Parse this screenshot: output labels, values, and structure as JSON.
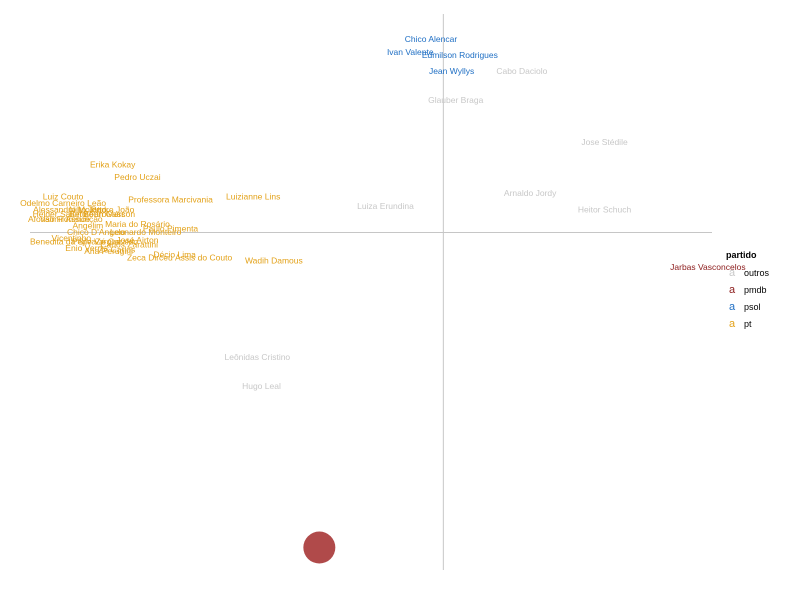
{
  "chart_data": {
    "type": "scatter",
    "title": "",
    "xlabel": "",
    "ylabel": "",
    "xlim": [
      -1.0,
      0.65
    ],
    "ylim": [
      -1.05,
      0.68
    ],
    "grid": false,
    "legend": {
      "title": "partido",
      "placement": "right",
      "entries": [
        {
          "key": "a",
          "name": "outros",
          "color": "#c8c8c8"
        },
        {
          "key": "a",
          "name": "pmdb",
          "color": "#8b1a1a"
        },
        {
          "key": "a",
          "name": "psol",
          "color": "#1f6fc4"
        },
        {
          "key": "a",
          "name": "pt",
          "color": "#e3a21a"
        }
      ]
    },
    "point": {
      "x": -0.3,
      "y": -0.98,
      "color": "#b04a4a"
    },
    "labels": [
      {
        "text": "Chico Alencar",
        "party": "psol",
        "x": -0.03,
        "y": 0.6
      },
      {
        "text": "Ivan Valente",
        "party": "psol",
        "x": -0.08,
        "y": 0.56
      },
      {
        "text": "Edmilson Rodrigues",
        "party": "psol",
        "x": 0.04,
        "y": 0.55
      },
      {
        "text": "Jean Wyllys",
        "party": "psol",
        "x": 0.02,
        "y": 0.5
      },
      {
        "text": "Cabo Daciolo",
        "party": "outros",
        "x": 0.19,
        "y": 0.5
      },
      {
        "text": "Glauber Braga",
        "party": "outros",
        "x": 0.03,
        "y": 0.41
      },
      {
        "text": "Jose Stédile",
        "party": "outros",
        "x": 0.39,
        "y": 0.28
      },
      {
        "text": "Erika Kokay",
        "party": "pt",
        "x": -0.8,
        "y": 0.21
      },
      {
        "text": "Pedro Uczai",
        "party": "pt",
        "x": -0.74,
        "y": 0.17
      },
      {
        "text": "Arnaldo Jordy",
        "party": "outros",
        "x": 0.21,
        "y": 0.12
      },
      {
        "text": "Luizianne Lins",
        "party": "pt",
        "x": -0.46,
        "y": 0.11
      },
      {
        "text": "Luiz Couto",
        "party": "pt",
        "x": -0.92,
        "y": 0.11
      },
      {
        "text": "Professora Marcivania",
        "party": "pt",
        "x": -0.66,
        "y": 0.1
      },
      {
        "text": "Odelmo Carneiro Leão",
        "party": "pt",
        "x": -0.92,
        "y": 0.09
      },
      {
        "text": "Heitor Schuch",
        "party": "outros",
        "x": 0.39,
        "y": 0.07
      },
      {
        "text": "Luiza Erundina",
        "party": "outros",
        "x": -0.14,
        "y": 0.08
      },
      {
        "text": "Alessandro Molon",
        "party": "pt",
        "x": -0.91,
        "y": 0.07
      },
      {
        "text": "Nilto Tatto",
        "party": "pt",
        "x": -0.86,
        "y": 0.07
      },
      {
        "text": "Padre João",
        "party": "pt",
        "x": -0.8,
        "y": 0.07
      },
      {
        "text": "Helder Salomão",
        "party": "pt",
        "x": -0.92,
        "y": 0.055
      },
      {
        "text": "Beto Faro",
        "party": "pt",
        "x": -0.86,
        "y": 0.055
      },
      {
        "text": "Bohn Gass",
        "party": "pt",
        "x": -0.82,
        "y": 0.055
      },
      {
        "text": "Marcon",
        "party": "pt",
        "x": -0.78,
        "y": 0.055
      },
      {
        "text": "Afonso Florence",
        "party": "pt",
        "x": -0.93,
        "y": 0.04
      },
      {
        "text": "Valmir Assunção",
        "party": "pt",
        "x": -0.9,
        "y": 0.04
      },
      {
        "text": "Angelim",
        "party": "pt",
        "x": -0.86,
        "y": 0.02
      },
      {
        "text": "Maria do Rosário",
        "party": "pt",
        "x": -0.74,
        "y": 0.025
      },
      {
        "text": "Paulo Pimenta",
        "party": "pt",
        "x": -0.66,
        "y": 0.01
      },
      {
        "text": "Chico D'Angelo",
        "party": "pt",
        "x": -0.84,
        "y": 0.0
      },
      {
        "text": "Leonardo Monteiro",
        "party": "pt",
        "x": -0.72,
        "y": 0.0
      },
      {
        "text": "Vicentinho",
        "party": "pt",
        "x": -0.9,
        "y": -0.02
      },
      {
        "text": "Benedita da Silva",
        "party": "pt",
        "x": -0.92,
        "y": -0.03
      },
      {
        "text": "Pepe Vargas",
        "party": "pt",
        "x": -0.84,
        "y": -0.03
      },
      {
        "text": "Zé Geraldo",
        "party": "pt",
        "x": -0.79,
        "y": -0.03
      },
      {
        "text": "José Airton",
        "party": "pt",
        "x": -0.74,
        "y": -0.025
      },
      {
        "text": "Carlos Zarattini",
        "party": "pt",
        "x": -0.76,
        "y": -0.04
      },
      {
        "text": "Enio Verri",
        "party": "pt",
        "x": -0.87,
        "y": -0.05
      },
      {
        "text": "Ana Perugini",
        "party": "pt",
        "x": -0.81,
        "y": -0.06
      },
      {
        "text": "Zé Carlos",
        "party": "pt",
        "x": -0.79,
        "y": -0.055
      },
      {
        "text": "Décio Lima",
        "party": "pt",
        "x": -0.65,
        "y": -0.07
      },
      {
        "text": "Zeca Dirceu",
        "party": "pt",
        "x": -0.71,
        "y": -0.08
      },
      {
        "text": "Assis do Couto",
        "party": "pt",
        "x": -0.58,
        "y": -0.08
      },
      {
        "text": "Wadih Damous",
        "party": "pt",
        "x": -0.41,
        "y": -0.09
      },
      {
        "text": "Jarbas Vasconcelos",
        "party": "pmdb",
        "x": 0.64,
        "y": -0.11
      },
      {
        "text": "Leônidas Cristino",
        "party": "outros",
        "x": -0.45,
        "y": -0.39
      },
      {
        "text": "Hugo Leal",
        "party": "outros",
        "x": -0.44,
        "y": -0.48
      }
    ]
  }
}
